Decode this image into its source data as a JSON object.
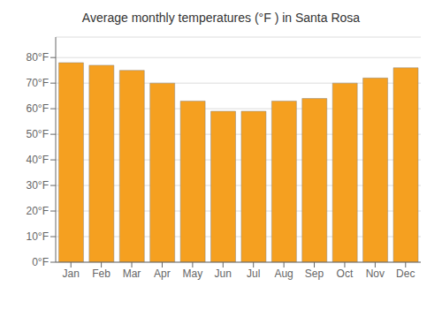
{
  "chart_data": {
    "type": "bar",
    "title": "Average monthly temperatures (°F ) in Santa Rosa",
    "categories": [
      "Jan",
      "Feb",
      "Mar",
      "Apr",
      "May",
      "Jun",
      "Jul",
      "Aug",
      "Sep",
      "Oct",
      "Nov",
      "Dec"
    ],
    "values": [
      78,
      77,
      75,
      70,
      63,
      59,
      59,
      63,
      64,
      70,
      72,
      76
    ],
    "color": "#F5A020",
    "ylim": [
      0,
      88
    ],
    "yticks": [
      {
        "value": 0,
        "label": "0°F"
      },
      {
        "value": 10,
        "label": "10°F"
      },
      {
        "value": 20,
        "label": "20°F"
      },
      {
        "value": 30,
        "label": "30°F"
      },
      {
        "value": 40,
        "label": "40°F"
      },
      {
        "value": 50,
        "label": "50°F"
      },
      {
        "value": 60,
        "label": "60°F"
      },
      {
        "value": 70,
        "label": "70°F"
      },
      {
        "value": 80,
        "label": "80°F"
      }
    ],
    "grid": true
  }
}
